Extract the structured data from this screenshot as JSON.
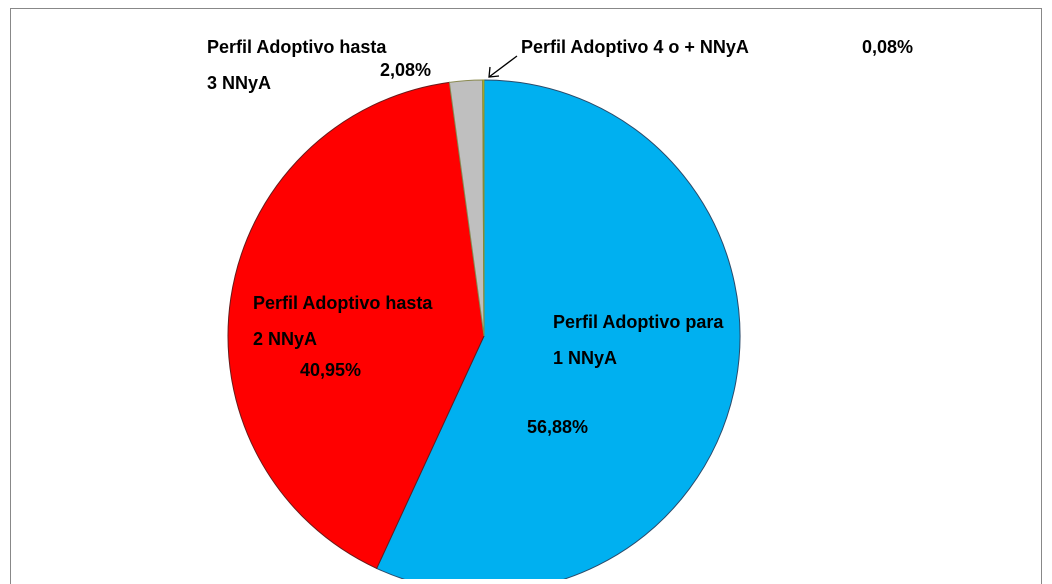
{
  "chart_data": {
    "type": "pie",
    "categories": [
      "Perfil Adoptivo para 1 NNyA",
      "Perfil Adoptivo hasta 2 NNyA",
      "Perfil Adoptivo hasta 3 NNyA",
      "Perfil Adoptivo  4 o + NNyA"
    ],
    "values": [
      56.88,
      40.95,
      2.08,
      0.08
    ],
    "value_labels": [
      "56,88%",
      "40,95%",
      "2,08%",
      "0,08%"
    ],
    "colors": [
      "#00b0f0",
      "#ff0000",
      "#bfbfbf",
      "#ffff00"
    ]
  }
}
